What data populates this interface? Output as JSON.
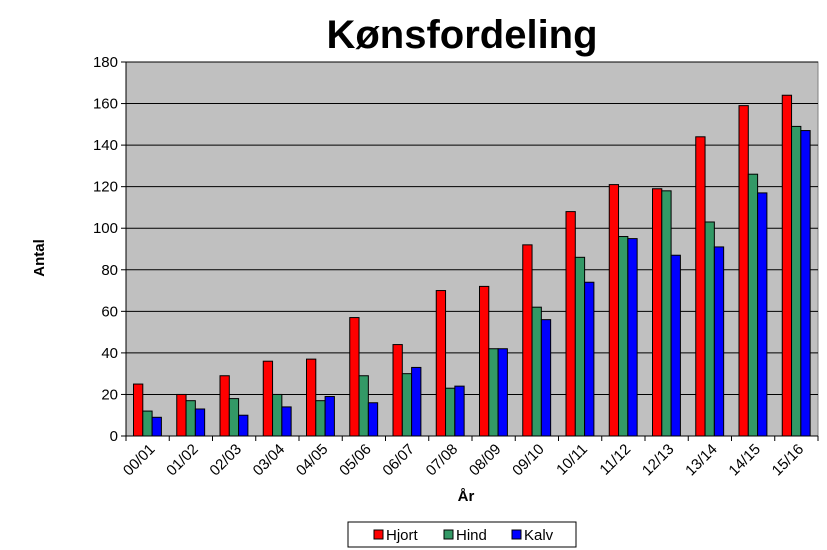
{
  "chart_data": {
    "type": "bar",
    "title": "Kønsfordeling",
    "xlabel": "År",
    "ylabel": "Antal",
    "ylim": [
      0,
      180
    ],
    "yticks": [
      0,
      20,
      40,
      60,
      80,
      100,
      120,
      140,
      160,
      180
    ],
    "grid": true,
    "legend_position": "bottom",
    "plot_background": "#c0c0c0",
    "categories": [
      "00/01",
      "01/02",
      "02/03",
      "03/04",
      "04/05",
      "05/06",
      "06/07",
      "07/08",
      "08/09",
      "09/10",
      "10/11",
      "11/12",
      "12/13",
      "13/14",
      "14/15",
      "15/16"
    ],
    "series": [
      {
        "name": "Hjort",
        "color": "#ff0000",
        "values": [
          25,
          20,
          29,
          36,
          37,
          57,
          44,
          70,
          72,
          92,
          108,
          121,
          119,
          144,
          159,
          164
        ]
      },
      {
        "name": "Hind",
        "color": "#339966",
        "values": [
          12,
          17,
          18,
          20,
          17,
          29,
          30,
          23,
          42,
          62,
          86,
          96,
          118,
          103,
          126,
          149
        ]
      },
      {
        "name": "Kalv",
        "color": "#0000ff",
        "values": [
          9,
          13,
          10,
          14,
          19,
          16,
          33,
          24,
          42,
          56,
          74,
          95,
          87,
          91,
          117,
          147
        ]
      }
    ]
  }
}
